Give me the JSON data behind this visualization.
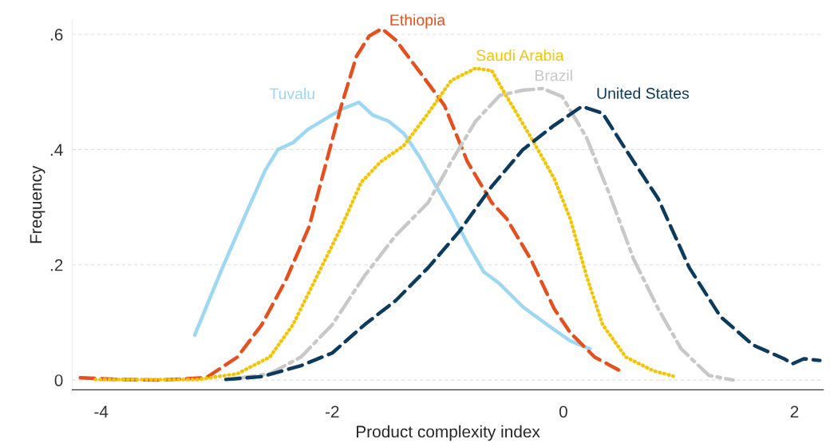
{
  "chart_data": {
    "type": "line",
    "xlabel": "Product complexity index",
    "ylabel": "Frequency",
    "xlim": [
      -4.25,
      2.25
    ],
    "ylim": [
      -0.017,
      0.625
    ],
    "xticks": [
      {
        "value": -4,
        "label": "-4"
      },
      {
        "value": -2,
        "label": "-2"
      },
      {
        "value": 0,
        "label": "0"
      },
      {
        "value": 2,
        "label": "2"
      }
    ],
    "yticks": [
      {
        "value": 0,
        "label": "0"
      },
      {
        "value": 0.2,
        "label": ".2"
      },
      {
        "value": 0.4,
        "label": ".4"
      },
      {
        "value": 0.6,
        "label": ".6"
      }
    ],
    "grid": "y",
    "legend": false,
    "series": [
      {
        "name": "Tuvalu",
        "color": "#9dd7f2",
        "line_style": "solid",
        "x": [
          -3.19,
          -2.95,
          -2.75,
          -2.58,
          -2.47,
          -2.34,
          -2.21,
          -2.07,
          -1.92,
          -1.77,
          -1.65,
          -1.51,
          -1.38,
          -1.24,
          -1.1,
          -0.97,
          -0.83,
          -0.69,
          -0.55,
          -0.35,
          -0.14,
          0.06,
          0.23
        ],
        "values": [
          0.078,
          0.195,
          0.287,
          0.364,
          0.4,
          0.412,
          0.435,
          0.452,
          0.47,
          0.482,
          0.46,
          0.449,
          0.428,
          0.386,
          0.336,
          0.291,
          0.237,
          0.188,
          0.167,
          0.127,
          0.096,
          0.068,
          0.054
        ]
      },
      {
        "name": "Ethiopia",
        "color": "#e5501e",
        "line_style": "dashed",
        "x": [
          -4.18,
          -3.84,
          -3.5,
          -3.09,
          -2.82,
          -2.61,
          -2.4,
          -2.2,
          -2.07,
          -1.92,
          -1.79,
          -1.68,
          -1.57,
          -1.45,
          -1.24,
          -1.03,
          -0.83,
          -0.62,
          -0.49,
          -0.28,
          -0.08,
          0.06,
          0.27,
          0.51
        ],
        "values": [
          0.004,
          0.001,
          0.0,
          0.004,
          0.04,
          0.096,
          0.174,
          0.266,
          0.364,
          0.477,
          0.562,
          0.597,
          0.61,
          0.59,
          0.534,
          0.477,
          0.379,
          0.308,
          0.28,
          0.209,
          0.124,
          0.082,
          0.04,
          0.014
        ]
      },
      {
        "name": "Saudi Arabia",
        "color": "#f5c400",
        "line_style": "dotted",
        "x": [
          -4.05,
          -3.16,
          -2.82,
          -2.54,
          -2.34,
          -2.13,
          -1.92,
          -1.75,
          -1.58,
          -1.38,
          -1.17,
          -0.97,
          -0.76,
          -0.62,
          -0.49,
          -0.28,
          -0.08,
          0.06,
          0.2,
          0.34,
          0.54,
          0.78,
          0.95
        ],
        "values": [
          0.001,
          0.001,
          0.011,
          0.04,
          0.096,
          0.181,
          0.266,
          0.343,
          0.379,
          0.407,
          0.463,
          0.52,
          0.541,
          0.537,
          0.492,
          0.421,
          0.35,
          0.28,
          0.181,
          0.096,
          0.04,
          0.016,
          0.007
        ]
      },
      {
        "name": "Brazil",
        "color": "#c8c8c8",
        "line_style": "dashdot",
        "x": [
          -2.82,
          -2.54,
          -2.27,
          -2.0,
          -1.72,
          -1.45,
          -1.17,
          -0.97,
          -0.76,
          -0.55,
          -0.35,
          -0.18,
          -0.01,
          0.2,
          0.4,
          0.61,
          0.82,
          1.02,
          1.26,
          1.47
        ],
        "values": [
          0.003,
          0.011,
          0.04,
          0.096,
          0.181,
          0.251,
          0.308,
          0.379,
          0.449,
          0.494,
          0.503,
          0.506,
          0.492,
          0.421,
          0.322,
          0.209,
          0.124,
          0.054,
          0.008,
          0.0
        ]
      },
      {
        "name": "United States",
        "color": "#0d3b5e",
        "line_style": "dashed",
        "x": [
          -2.92,
          -2.61,
          -2.27,
          -2.0,
          -1.72,
          -1.45,
          -1.17,
          -0.9,
          -0.62,
          -0.35,
          -0.08,
          0.16,
          0.34,
          0.54,
          0.82,
          1.09,
          1.36,
          1.64,
          1.91,
          1.98,
          2.08,
          2.22
        ],
        "values": [
          0.001,
          0.006,
          0.025,
          0.047,
          0.096,
          0.138,
          0.195,
          0.258,
          0.336,
          0.4,
          0.442,
          0.475,
          0.463,
          0.4,
          0.315,
          0.195,
          0.11,
          0.061,
          0.037,
          0.028,
          0.037,
          0.034
        ]
      }
    ]
  }
}
